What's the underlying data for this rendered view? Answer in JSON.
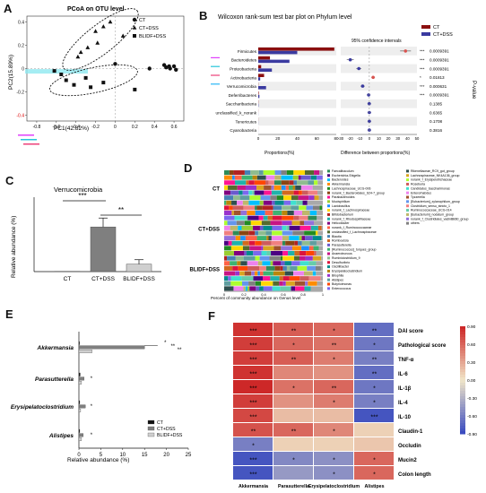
{
  "colors": {
    "ct": "#111111",
    "dss": "#7f7f7f",
    "blidf": "#cfcfcf",
    "firm_red": "#8b0f0f",
    "blue": "#3a3aa0"
  },
  "panels": [
    "A",
    "B",
    "C",
    "D",
    "E",
    "F"
  ],
  "panel_a": {
    "title": "PCoA on OTU level",
    "xlabel": "PC1(42.82%)",
    "ylabel": "PC2(15.89%)",
    "legend": [
      "CT",
      "CT+DSS",
      "BLIDF+DSS"
    ],
    "xticks": [
      "-0.8",
      "-0.6",
      "-0.4",
      "-0.2",
      "0",
      "0.2",
      "0.4",
      "0.6"
    ],
    "yticks": [
      "0.4",
      "0.2",
      "0",
      "-0.2",
      "-0.4"
    ]
  },
  "panel_b": {
    "title": "Wilcoxon rank-sum test bar plot on Phylum level",
    "legend": [
      "CT",
      "CT+DSS"
    ],
    "ci_label": "95% confidence intervals",
    "xlabel_left": "Proportions(%)",
    "xlabel_right": "Difference between proportions(%)",
    "pvalue_label": "P-value",
    "left_ticks": [
      "0",
      "20",
      "40",
      "60",
      "80"
    ],
    "right_ticks": [
      "-30",
      "-20",
      "-10",
      "0",
      "10",
      "20",
      "30",
      "40",
      "50"
    ]
  },
  "panel_c": {
    "title": "Verrucomicrobia",
    "ylabel": "Relative abundance (%)",
    "sig": [
      "***",
      "**"
    ]
  },
  "panel_d": {
    "xlabel": "Percent of community abundance on Genus level",
    "groups": [
      "CT",
      "CT+DSS",
      "BLIDF+DSS"
    ],
    "xticks": [
      "0",
      "0.2",
      "0.4",
      "0.6",
      "0.8",
      "1"
    ],
    "legend_col1": [
      "Faecalibaculum",
      "Escherichia-Shigella",
      "Bacteroides",
      "Akkermansia",
      "Lachnospiraceae_UCG-006",
      "norank_f_Bacteroidales_S24-7_group",
      "Parabacteroides",
      "Mucispirillum",
      "Lactobacillus",
      "norank_f_Lachnospiraceae",
      "Bifidobacterium",
      "norank_f_Rhodospirillaceae",
      "Helicobacter",
      "norank_f_Ruminococcaceae",
      "unclassified_f_Lachnospiraceae",
      "Blautia",
      "Romboutsia",
      "Parasutterella",
      "[Ruminococcus]_torques_group",
      "Anaerotruncus",
      "Ruminiclostridium_9",
      "Desulfovibrio",
      "Oscillibacter",
      "Erysipelatoclostridium",
      "Bilophila",
      "Alistipes",
      "Butyricimonas",
      "Enterococcus"
    ],
    "legend_col2": [
      "Rikenellaceae_RC9_gut_group",
      "Lachnospiraceae_NK4A136_group",
      "norank_f_Erysipelotrichaceae",
      "Roseburia",
      "Candidatus_Saccharimonas",
      "Enterorhabdus",
      "Tyzzerella",
      "[Eubacterium]_xylanophilum_group",
      "Clostridium_sensu_stricto_1",
      "Ruminococcaceae_UCG-014",
      "[Eubacterium]_nodatum_group",
      "norank_f_Clostridiales_vadinBB60_group",
      "others"
    ]
  },
  "panel_e": {
    "xlabel": "Relative abundance (%)",
    "genera": [
      "Akkermansia",
      "Parasutterella",
      "Erysipelatoclostridium",
      "Alistipes"
    ],
    "legend": [
      "CT",
      "CT+DSS",
      "BLIDF+DSS"
    ],
    "xticks": [
      "0",
      "5",
      "10",
      "15",
      "20",
      "25"
    ],
    "sig_akk": [
      "*",
      "**",
      "**"
    ],
    "sig_small": "*"
  },
  "panel_f": {
    "cols": [
      "Akkermansia",
      "Parasutterella",
      "Erysipelatoclostridium",
      "Alistipes"
    ],
    "rows": [
      "DAI score",
      "Pathological score",
      "TNF-α",
      "IL-6",
      "IL-1β",
      "IL-4",
      "IL-10",
      "Claudin-1",
      "Occludin",
      "Mucin2",
      "Colon length"
    ],
    "colorbar": [
      "0.90",
      "0.60",
      "0.30",
      "0.00",
      "-0.30",
      "-0.60",
      "-0.90"
    ],
    "sig": [
      [
        "***",
        "**",
        "*",
        "**"
      ],
      [
        "***",
        "*",
        "**",
        "*"
      ],
      [
        "***",
        "**",
        "*",
        "**"
      ],
      [
        "***",
        "",
        "",
        "**"
      ],
      [
        "***",
        "*",
        "**",
        "*"
      ],
      [
        "***",
        "",
        "*",
        "*"
      ],
      [
        "***",
        "",
        "",
        "***"
      ],
      [
        "**",
        "**",
        "*",
        ""
      ],
      [
        "*",
        "",
        "",
        ""
      ],
      [
        "***",
        "*",
        "*",
        "*"
      ],
      [
        "***",
        "",
        "*",
        "*"
      ]
    ]
  },
  "chart_data": [
    {
      "type": "scatter",
      "title": "PCoA on OTU level",
      "xlabel": "PC1(42.82%)",
      "ylabel": "PC2(15.89%)",
      "xlim": [
        -0.9,
        0.7
      ],
      "ylim": [
        -0.45,
        0.45
      ],
      "series": [
        {
          "name": "CT",
          "points": [
            [
              0.5,
              0.03
            ],
            [
              0.52,
              0.01
            ],
            [
              0.55,
              0.02
            ],
            [
              0.56,
              0.0
            ],
            [
              0.6,
              0.02
            ],
            [
              0.62,
              -0.01
            ],
            [
              0.35,
              0.0
            ],
            [
              0.0,
              0.04
            ]
          ]
        },
        {
          "name": "CT+DSS",
          "points": [
            [
              -0.05,
              0.4
            ],
            [
              -0.12,
              0.36
            ],
            [
              -0.2,
              0.32
            ],
            [
              -0.28,
              0.18
            ],
            [
              -0.35,
              0.14
            ],
            [
              -0.18,
              0.22
            ],
            [
              -0.38,
              0.1
            ],
            [
              0.08,
              0.28
            ]
          ]
        },
        {
          "name": "BLIDF+DSS",
          "points": [
            [
              -0.55,
              -0.05
            ],
            [
              -0.5,
              -0.1
            ],
            [
              -0.42,
              -0.14
            ],
            [
              -0.25,
              -0.16
            ],
            [
              -0.12,
              -0.12
            ],
            [
              0.2,
              -0.18
            ],
            [
              -0.3,
              -0.08
            ],
            [
              -0.62,
              -0.02
            ]
          ]
        }
      ]
    },
    {
      "type": "bar",
      "title": "Wilcoxon rank-sum test bar plot on Phylum level",
      "categories": [
        "Firmicutes",
        "Bacteroidetes",
        "Proteobacteria",
        "Actinobacteria",
        "Verrucomicrobia",
        "Deferribacteres",
        "Saccharibacteria",
        "unclassified_k_norank",
        "Tenericutes",
        "Cyanobacteria"
      ],
      "series": [
        {
          "name": "CT",
          "values": [
            78,
            12,
            3,
            6,
            0.2,
            0.5,
            0.2,
            0.1,
            0.1,
            0.05
          ]
        },
        {
          "name": "CT+DSS",
          "values": [
            40,
            32,
            14,
            2,
            8,
            1.2,
            0.3,
            0.1,
            0.1,
            0.05
          ]
        }
      ],
      "difference": [
        38,
        -20,
        -11,
        4,
        -7,
        -0.7,
        -0.1,
        0,
        0,
        0
      ],
      "pvalues": [
        "0.0009391",
        "0.0009391",
        "0.0009391",
        "0.01813",
        "0.000631",
        "0.0009391",
        "0.1385",
        "0.6365",
        "0.1708",
        "0.3816"
      ],
      "sig": [
        "***",
        "***",
        "***",
        "*",
        "***",
        "***",
        "",
        "",
        "",
        ""
      ]
    },
    {
      "type": "bar",
      "title": "Verrucomicrobia",
      "categories": [
        "CT",
        "CT+DSS",
        "BLIDF+DSS"
      ],
      "values": [
        0.1,
        15,
        2.5
      ],
      "errors": [
        0,
        3,
        1.5
      ],
      "ylabel": "Relative abundance (%)",
      "ylim": [
        0,
        25
      ]
    },
    {
      "type": "bar",
      "xlabel": "Relative abundance (%)",
      "categories": [
        "Akkermansia",
        "Parasutterella",
        "Erysipelatoclostridium",
        "Alistipes"
      ],
      "series": [
        {
          "name": "CT",
          "values": [
            0.1,
            0.3,
            0.2,
            0.2
          ]
        },
        {
          "name": "CT+DSS",
          "values": [
            15,
            1.2,
            1.5,
            1.0
          ]
        },
        {
          "name": "BLIDF+DSS",
          "values": [
            3,
            0.6,
            0.4,
            0.6
          ]
        }
      ],
      "xlim": [
        0,
        25
      ]
    },
    {
      "type": "heatmap",
      "x": [
        "Akkermansia",
        "Parasutterella",
        "Erysipelatoclostridium",
        "Alistipes"
      ],
      "y": [
        "DAI score",
        "Pathological score",
        "TNF-α",
        "IL-6",
        "IL-1β",
        "IL-4",
        "IL-10",
        "Claudin-1",
        "Occludin",
        "Mucin2",
        "Colon length"
      ],
      "values": [
        [
          0.85,
          0.65,
          0.6,
          -0.7
        ],
        [
          0.8,
          0.6,
          0.55,
          -0.65
        ],
        [
          0.8,
          0.65,
          0.5,
          -0.6
        ],
        [
          0.85,
          0.45,
          0.4,
          -0.7
        ],
        [
          0.9,
          0.55,
          0.6,
          -0.65
        ],
        [
          0.8,
          0.4,
          0.5,
          -0.6
        ],
        [
          0.75,
          0.2,
          0.2,
          -0.85
        ],
        [
          0.7,
          0.6,
          0.45,
          0.1
        ],
        [
          -0.6,
          0.1,
          0.1,
          0.15
        ],
        [
          -0.85,
          -0.55,
          -0.5,
          0.6
        ],
        [
          -0.85,
          -0.45,
          -0.5,
          0.6
        ]
      ],
      "colorbar": [
        -0.9,
        0.9
      ]
    }
  ]
}
